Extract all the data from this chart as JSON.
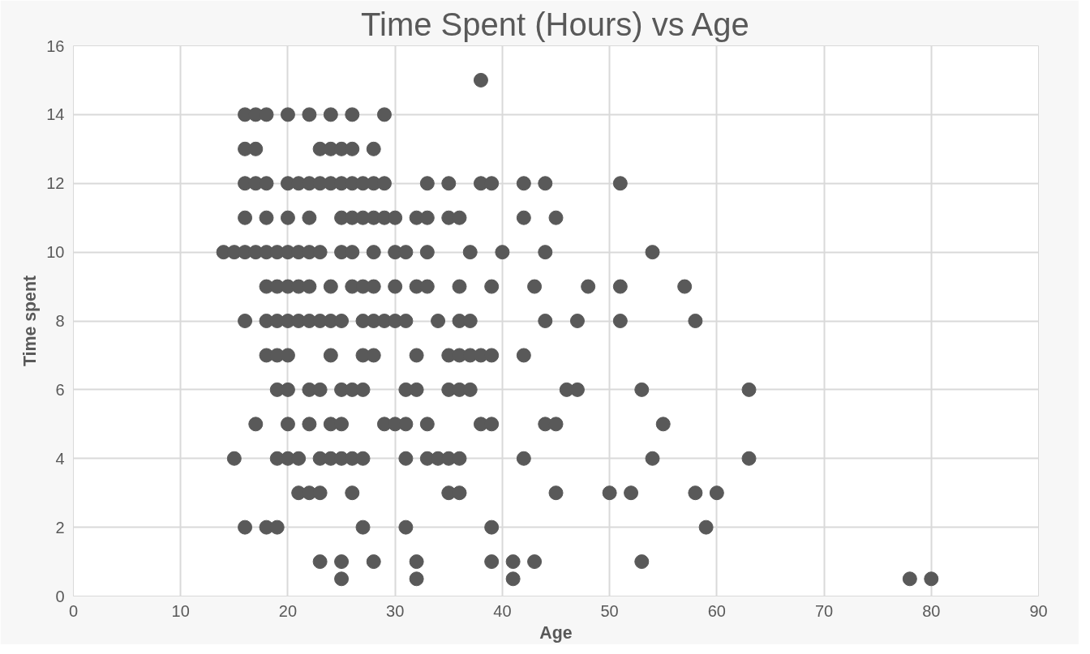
{
  "chart_data": {
    "type": "scatter",
    "title": "Time Spent (Hours) vs Age",
    "xlabel": "Age",
    "ylabel": "Time spent",
    "xlim": [
      0,
      90
    ],
    "xticks": [
      0,
      10,
      20,
      30,
      40,
      50,
      60,
      70,
      80,
      90
    ],
    "ylim": [
      0,
      16
    ],
    "yticks": [
      0,
      2,
      4,
      6,
      8,
      10,
      12,
      14,
      16
    ],
    "grid": true,
    "marker": "circle",
    "series": [
      {
        "color": "#595959",
        "x": [
          38,
          16,
          17,
          18,
          20,
          22,
          24,
          26,
          29,
          16,
          17,
          23,
          24,
          25,
          26,
          28,
          16,
          17,
          18,
          20,
          21,
          22,
          23,
          24,
          25,
          26,
          27,
          28,
          29,
          33,
          35,
          38,
          39,
          42,
          44,
          51,
          16,
          18,
          20,
          22,
          25,
          26,
          27,
          28,
          29,
          30,
          32,
          33,
          35,
          36,
          42,
          45,
          14,
          15,
          16,
          17,
          18,
          19,
          20,
          21,
          22,
          23,
          25,
          26,
          28,
          30,
          31,
          33,
          37,
          40,
          44,
          54,
          18,
          19,
          20,
          21,
          22,
          24,
          26,
          27,
          28,
          30,
          32,
          33,
          36,
          39,
          43,
          48,
          51,
          57,
          16,
          18,
          19,
          20,
          21,
          22,
          23,
          24,
          25,
          27,
          28,
          29,
          30,
          31,
          34,
          36,
          37,
          44,
          47,
          51,
          58,
          18,
          19,
          20,
          24,
          27,
          28,
          32,
          35,
          36,
          37,
          38,
          39,
          42,
          19,
          20,
          22,
          23,
          25,
          26,
          27,
          31,
          32,
          35,
          36,
          37,
          46,
          47,
          53,
          63,
          17,
          20,
          22,
          24,
          25,
          29,
          30,
          31,
          33,
          38,
          39,
          44,
          45,
          55,
          15,
          19,
          20,
          21,
          23,
          24,
          25,
          26,
          27,
          31,
          33,
          34,
          35,
          36,
          42,
          54,
          63,
          21,
          22,
          23,
          26,
          35,
          36,
          45,
          50,
          52,
          58,
          60,
          16,
          18,
          19,
          27,
          31,
          39,
          59,
          23,
          25,
          28,
          32,
          39,
          41,
          43,
          53,
          25,
          32,
          41,
          78,
          80
        ],
        "values": [
          15,
          14,
          14,
          14,
          14,
          14,
          14,
          14,
          14,
          13,
          13,
          13,
          13,
          13,
          13,
          13,
          12,
          12,
          12,
          12,
          12,
          12,
          12,
          12,
          12,
          12,
          12,
          12,
          12,
          12,
          12,
          12,
          12,
          12,
          12,
          12,
          11,
          11,
          11,
          11,
          11,
          11,
          11,
          11,
          11,
          11,
          11,
          11,
          11,
          11,
          11,
          11,
          10,
          10,
          10,
          10,
          10,
          10,
          10,
          10,
          10,
          10,
          10,
          10,
          10,
          10,
          10,
          10,
          10,
          10,
          10,
          10,
          9,
          9,
          9,
          9,
          9,
          9,
          9,
          9,
          9,
          9,
          9,
          9,
          9,
          9,
          9,
          9,
          9,
          9,
          8,
          8,
          8,
          8,
          8,
          8,
          8,
          8,
          8,
          8,
          8,
          8,
          8,
          8,
          8,
          8,
          8,
          8,
          8,
          8,
          8,
          7,
          7,
          7,
          7,
          7,
          7,
          7,
          7,
          7,
          7,
          7,
          7,
          7,
          6,
          6,
          6,
          6,
          6,
          6,
          6,
          6,
          6,
          6,
          6,
          6,
          6,
          6,
          6,
          6,
          5,
          5,
          5,
          5,
          5,
          5,
          5,
          5,
          5,
          5,
          5,
          5,
          5,
          5,
          4,
          4,
          4,
          4,
          4,
          4,
          4,
          4,
          4,
          4,
          4,
          4,
          4,
          4,
          4,
          4,
          4,
          3,
          3,
          3,
          3,
          3,
          3,
          3,
          3,
          3,
          3,
          3,
          2,
          2,
          2,
          2,
          2,
          2,
          2,
          1,
          1,
          1,
          1,
          1,
          1,
          1,
          1,
          0.5,
          0.5,
          0.5,
          0.5,
          0.5
        ]
      }
    ]
  }
}
